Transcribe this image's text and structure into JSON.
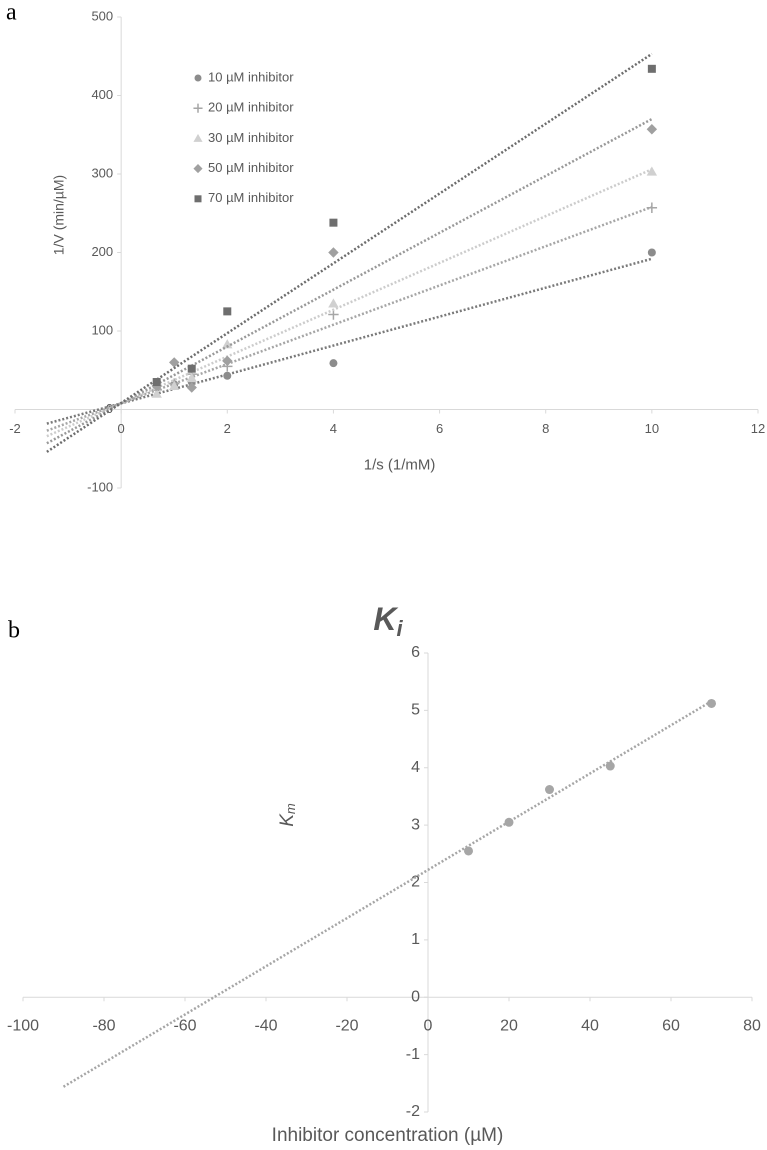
{
  "chart_data": [
    {
      "type": "scatter",
      "label": "a",
      "xlabel": "1/s (1/mM)",
      "ylabel": "1/V (min/µM)",
      "xlim": [
        -2,
        12
      ],
      "xticks": [
        -2,
        0,
        2,
        4,
        6,
        8,
        10,
        12
      ],
      "ylim": [
        -100,
        500
      ],
      "yticks": [
        -100,
        0,
        100,
        200,
        300,
        400,
        500
      ],
      "legend": "upper left",
      "series": [
        {
          "name": "10 µM inhibitor",
          "color": "#8c8c8c",
          "marker": "circle",
          "x": [
            0.67,
            1,
            1.33,
            2,
            4,
            10
          ],
          "values": [
            28,
            32,
            35,
            43,
            59,
            200
          ],
          "trendline": {
            "color": "#7a7a7a",
            "x": [
              -1.4,
              10
            ],
            "y": [
              -18,
              192
            ]
          }
        },
        {
          "name": "20 µM inhibitor",
          "color": "#a6a6a6",
          "marker": "plus",
          "x": [
            0.67,
            1,
            1.33,
            2,
            4,
            10
          ],
          "values": [
            25,
            33,
            45,
            55,
            121,
            257
          ],
          "trendline": {
            "color": "#a6a6a6",
            "x": [
              -1.4,
              10
            ],
            "y": [
              -27,
              258
            ]
          }
        },
        {
          "name": "30 µM inhibitor",
          "color": "#d0d0d0",
          "marker": "triangle",
          "x": [
            0.67,
            1,
            1.33,
            2,
            4,
            10
          ],
          "values": [
            20,
            30,
            40,
            83,
            135,
            303
          ],
          "trendline": {
            "color": "#cccccc",
            "x": [
              -1.4,
              10
            ],
            "y": [
              -34,
              306
            ]
          }
        },
        {
          "name": "50 µM inhibitor",
          "color": "#a0a0a0",
          "marker": "diamond",
          "x": [
            0.67,
            1,
            1.33,
            2,
            4,
            10
          ],
          "values": [
            30,
            60,
            28,
            62,
            200,
            357
          ],
          "trendline": {
            "color": "#999999",
            "x": [
              -1.4,
              10
            ],
            "y": [
              -43,
              370
            ]
          }
        },
        {
          "name": "70 µM inhibitor",
          "color": "#6e6e6e",
          "marker": "square",
          "x": [
            0.67,
            1.33,
            2,
            4,
            10
          ],
          "values": [
            35,
            52,
            125,
            238,
            434
          ],
          "trendline": {
            "color": "#6d6d6d",
            "x": [
              -1.4,
              10
            ],
            "y": [
              -54,
              453
            ]
          }
        }
      ]
    },
    {
      "type": "scatter",
      "label": "b",
      "title": {
        "main": "K",
        "sub": "i"
      },
      "xlabel": "Inhibitor concentration (µM)",
      "ylabel": {
        "main": "K",
        "sub": "m"
      },
      "xlim": [
        -100,
        80
      ],
      "xticks": [
        -100,
        -80,
        -60,
        -40,
        -20,
        0,
        20,
        40,
        60,
        80
      ],
      "ylim": [
        -2,
        6
      ],
      "yticks": [
        -2,
        -1,
        0,
        1,
        2,
        3,
        4,
        5,
        6
      ],
      "series": [
        {
          "color": "#a6a6a6",
          "marker": "circle",
          "x": [
            10,
            20,
            30,
            45,
            70
          ],
          "values": [
            2.55,
            3.05,
            3.62,
            4.03,
            5.12
          ],
          "trendline": {
            "color": "#a6a6a6",
            "x": [
              -90,
              70
            ],
            "y": [
              -1.56,
              5.16
            ]
          }
        }
      ]
    }
  ]
}
